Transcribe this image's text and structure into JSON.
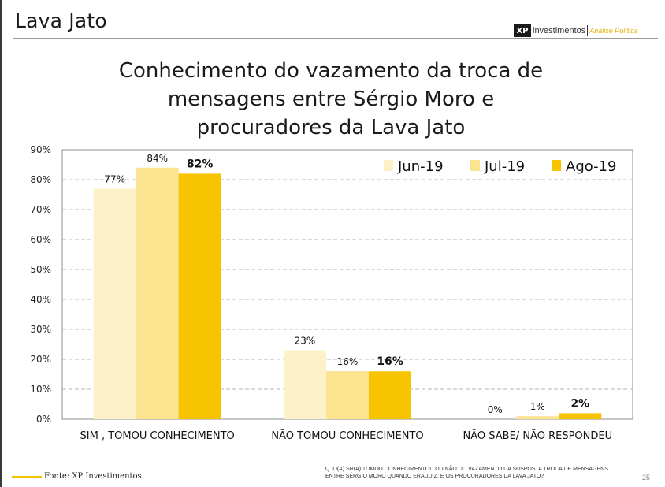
{
  "header": {
    "title": "Lava Jato"
  },
  "brand": {
    "logo": "XP",
    "name": "investimentos",
    "sub": "Análise Política"
  },
  "colors": {
    "jun": "#fdf1c9",
    "jul": "#fbe38f",
    "ago": "#f8c400",
    "accent": "#f0c400"
  },
  "chart_data": {
    "type": "bar",
    "title": "Conhecimento do vazamento da troca de mensagens entre Sérgio Moro e procuradores da Lava Jato",
    "title_lines": [
      "Conhecimento do vazamento da troca de",
      "mensagens entre Sérgio Moro e",
      "procuradores da Lava Jato"
    ],
    "categories": [
      "SIM , TOMOU CONHECIMENTO",
      "NÃO TOMOU CONHECIMENTO",
      "NÃO SABE/ NÃO RESPONDEU"
    ],
    "series": [
      {
        "name": "Jun-19",
        "values": [
          77,
          23,
          0
        ],
        "labels": [
          "77%",
          "23%",
          "0%"
        ],
        "color": "#fdf1c9",
        "bold_labels": false
      },
      {
        "name": "Jul-19",
        "values": [
          84,
          16,
          1
        ],
        "labels": [
          "84%",
          "16%",
          "1%"
        ],
        "color": "#fbe38f",
        "bold_labels": false
      },
      {
        "name": "Ago-19",
        "values": [
          82,
          16,
          2
        ],
        "labels": [
          "82%",
          "16%",
          "2%"
        ],
        "color": "#f8c400",
        "bold_labels": true
      }
    ],
    "yticks": [
      "0%",
      "10%",
      "20%",
      "30%",
      "40%",
      "50%",
      "60%",
      "70%",
      "80%",
      "90%"
    ],
    "ylim": [
      0,
      90
    ],
    "grid": true,
    "legend_position": "top-right"
  },
  "footer": {
    "source": "Fonte: XP Investimentos",
    "note": "Q. O(A) SR(A) TOMOU CONHECIMENTOU OU NÃO DO VAZAMENTO DA SUSPOSTA TROCA DE MENSAGENS ENTRE SÉRGIO MORO QUANDO ERA JUIZ, E OS PROCURADORES DA LAVA JATO?",
    "page": "25"
  }
}
